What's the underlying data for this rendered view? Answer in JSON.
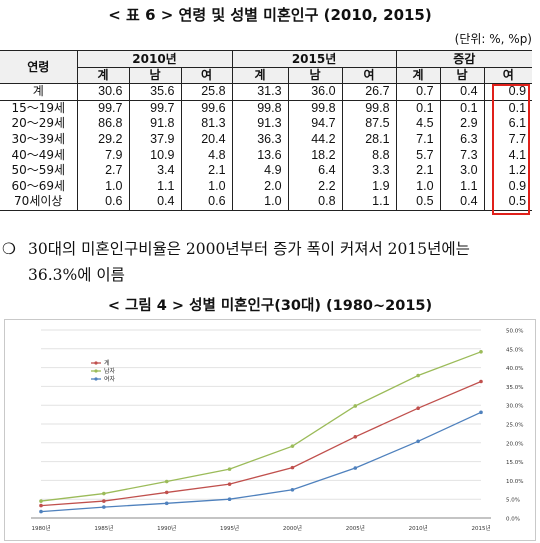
{
  "table_caption": "< 표 6 > 연령 및 성별 미혼인구 (2010, 2015)",
  "unit_note": "(단위: %, %p)",
  "table": {
    "age_header": "연령",
    "groups": [
      "2010년",
      "2015년",
      "증감"
    ],
    "sub_headers": [
      "계",
      "남",
      "여",
      "계",
      "남",
      "여",
      "계",
      "남",
      "여"
    ],
    "rows": [
      {
        "label": "계",
        "values": [
          "30.6",
          "35.6",
          "25.8",
          "31.3",
          "36.0",
          "26.7",
          "0.7",
          "0.4",
          "0.9"
        ]
      },
      {
        "label": "15～19세",
        "values": [
          "99.7",
          "99.7",
          "99.6",
          "99.8",
          "99.8",
          "99.8",
          "0.1",
          "0.1",
          "0.1"
        ]
      },
      {
        "label": "20～29세",
        "values": [
          "86.8",
          "91.8",
          "81.3",
          "91.3",
          "94.7",
          "87.5",
          "4.5",
          "2.9",
          "6.1"
        ]
      },
      {
        "label": "30～39세",
        "values": [
          "29.2",
          "37.9",
          "20.4",
          "36.3",
          "44.2",
          "28.1",
          "7.1",
          "6.3",
          "7.7"
        ]
      },
      {
        "label": "40～49세",
        "values": [
          "7.9",
          "10.9",
          "4.8",
          "13.6",
          "18.2",
          "8.8",
          "5.7",
          "7.3",
          "4.1"
        ]
      },
      {
        "label": "50～59세",
        "values": [
          "2.7",
          "3.4",
          "2.1",
          "4.9",
          "6.4",
          "3.3",
          "2.1",
          "3.0",
          "1.2"
        ]
      },
      {
        "label": "60～69세",
        "values": [
          "1.0",
          "1.1",
          "1.0",
          "2.0",
          "2.2",
          "1.9",
          "1.0",
          "1.1",
          "0.9"
        ]
      },
      {
        "label": "70세이상",
        "values": [
          "0.6",
          "0.4",
          "0.6",
          "1.0",
          "0.8",
          "1.1",
          "0.5",
          "0.4",
          "0.5"
        ]
      }
    ]
  },
  "bullet": {
    "symbol": "❍",
    "line1": "30대의 미혼인구비율은 2000년부터 증가 폭이 커져서 2015년에는",
    "line2": "36.3%에 이름"
  },
  "figure_caption": "< 그림 4 > 성별 미혼인구(30대) (1980~2015)",
  "highlight_color": "#e0201a",
  "chart_data": {
    "type": "line",
    "title": "",
    "xlabel": "",
    "ylabel": "",
    "categories": [
      "1980년",
      "1985년",
      "1990년",
      "1995년",
      "2000년",
      "2005년",
      "2010년",
      "2015년"
    ],
    "ylim": [
      0,
      50
    ],
    "yticks": [
      "0.0%",
      "5.0%",
      "10.0%",
      "15.0%",
      "20.0%",
      "25.0%",
      "30.0%",
      "35.0%",
      "40.0%",
      "45.0%",
      "50.0%"
    ],
    "grid": true,
    "legend": "top-left",
    "series": [
      {
        "name": "계",
        "color": "#c0504d",
        "values": [
          3.3,
          4.5,
          6.8,
          9.0,
          13.4,
          21.6,
          29.2,
          36.3
        ]
      },
      {
        "name": "남자",
        "color": "#9bbb59",
        "values": [
          4.5,
          6.5,
          9.7,
          13.0,
          19.1,
          29.8,
          37.9,
          44.2
        ]
      },
      {
        "name": "여자",
        "color": "#4f81bd",
        "values": [
          1.7,
          2.9,
          3.9,
          5.0,
          7.5,
          13.3,
          20.4,
          28.1
        ]
      }
    ]
  }
}
